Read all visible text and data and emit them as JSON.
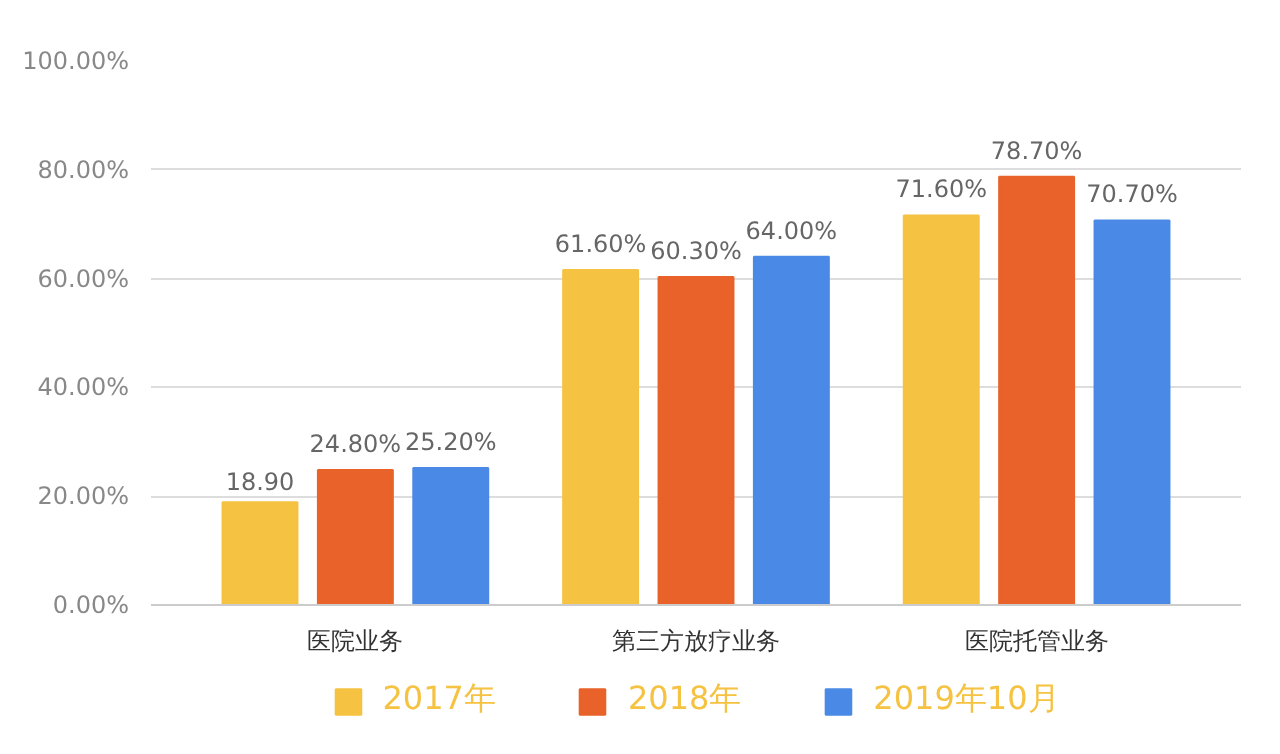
{
  "chart_data": {
    "type": "bar",
    "categories": [
      "医院业务",
      "第三方放疗业务",
      "医院托管业务"
    ],
    "series": [
      {
        "name": "2017年",
        "color": "#f5c242",
        "values": [
          18.9,
          61.6,
          71.6
        ],
        "value_labels": [
          "18.90",
          "61.60%",
          "71.60%"
        ]
      },
      {
        "name": "2018年",
        "color": "#e8622a",
        "values": [
          24.8,
          60.3,
          78.7
        ],
        "value_labels": [
          "24.80%",
          "60.30%",
          "78.70%"
        ]
      },
      {
        "name": "2019年10月",
        "color": "#4a8ae6",
        "values": [
          25.2,
          64.0,
          70.7
        ],
        "value_labels": [
          "25.20%",
          "64.00%",
          "70.70%"
        ]
      }
    ],
    "ylim": [
      0,
      100
    ],
    "yticks": [
      {
        "value": 0,
        "label": "0.00%"
      },
      {
        "value": 20,
        "label": "20.00%"
      },
      {
        "value": 40,
        "label": "40.00%"
      },
      {
        "value": 60,
        "label": "60.00%"
      },
      {
        "value": 80,
        "label": "80.00%"
      },
      {
        "value": 100,
        "label": "100.00%"
      }
    ],
    "grid": "y",
    "legend": "bottom"
  }
}
